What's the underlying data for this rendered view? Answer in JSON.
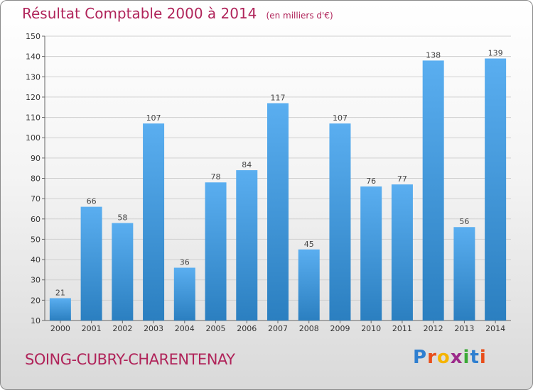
{
  "header": {
    "title": "Résultat Comptable 2000 à 2014",
    "unit": "(en milliers d'€)"
  },
  "footer": {
    "commune": "SOING-CUBRY-CHARENTENAY",
    "logo_letters": [
      "P",
      "r",
      "o",
      "x",
      "i",
      "t",
      "i"
    ],
    "logo_colors": [
      "#2f7fd0",
      "#e94e1b",
      "#f5b400",
      "#9c2a8a",
      "#3aa935",
      "#2f7fd0",
      "#e94e1b"
    ]
  },
  "colors": {
    "bar_light": "#5aaef0",
    "bar_dark": "#2b7fc0",
    "title": "#b0245a"
  },
  "chart_data": {
    "type": "bar",
    "categories": [
      "2000",
      "2001",
      "2002",
      "2003",
      "2004",
      "2005",
      "2006",
      "2007",
      "2008",
      "2009",
      "2010",
      "2011",
      "2012",
      "2013",
      "2014"
    ],
    "values": [
      21,
      66,
      58,
      107,
      36,
      78,
      84,
      117,
      45,
      107,
      76,
      77,
      138,
      56,
      139
    ],
    "ylim": [
      10,
      150
    ],
    "yticks": [
      10,
      20,
      30,
      40,
      50,
      60,
      70,
      80,
      90,
      100,
      110,
      120,
      130,
      140,
      150
    ],
    "grid": true
  }
}
